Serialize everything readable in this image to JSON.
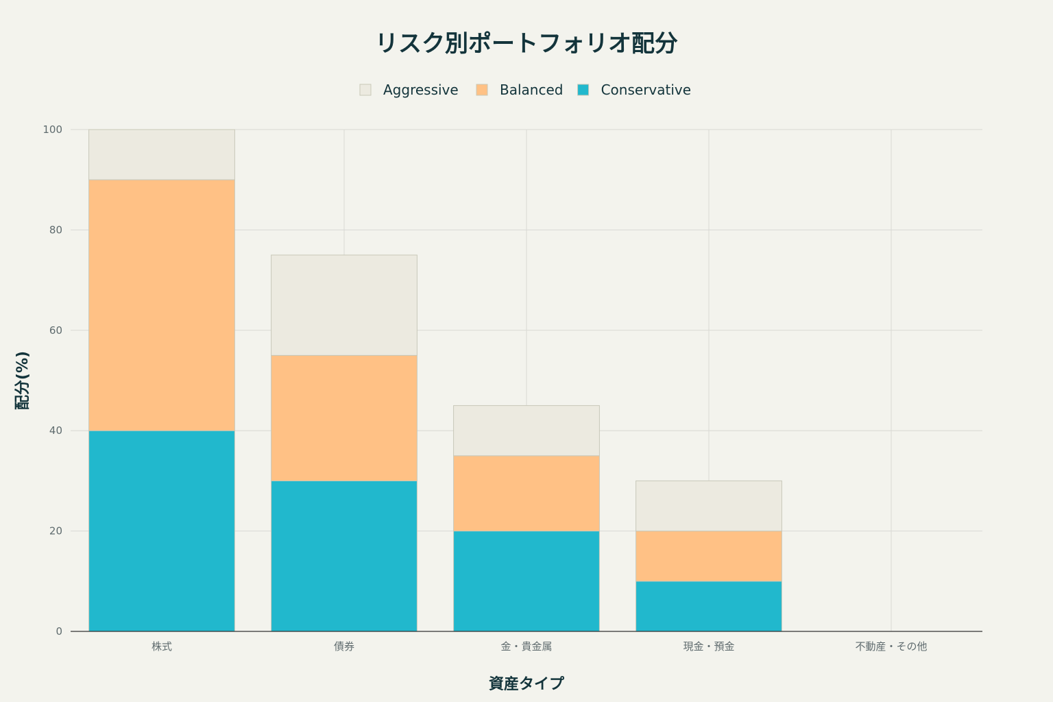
{
  "chart_data": {
    "type": "bar",
    "stacked": true,
    "title": "リスク別ポートフォリオ配分",
    "xlabel": "資産タイプ",
    "ylabel": "配分(%)",
    "ylim": [
      0,
      100
    ],
    "yticks": [
      0,
      20,
      40,
      60,
      80,
      100
    ],
    "grid": true,
    "legend_position": "top-center",
    "categories": [
      "株式",
      "債券",
      "金・貴金属",
      "現金・預金",
      "不動産・その他"
    ],
    "series": [
      {
        "name": "Conservative",
        "color": "#21b8cd",
        "values": [
          40,
          30,
          20,
          10,
          0
        ]
      },
      {
        "name": "Balanced",
        "color": "#ffc185",
        "values": [
          50,
          25,
          15,
          10,
          0
        ]
      },
      {
        "name": "Aggressive",
        "color": "#eceae0",
        "values": [
          10,
          20,
          10,
          10,
          0
        ]
      }
    ],
    "legend_order": [
      "Aggressive",
      "Balanced",
      "Conservative"
    ]
  }
}
